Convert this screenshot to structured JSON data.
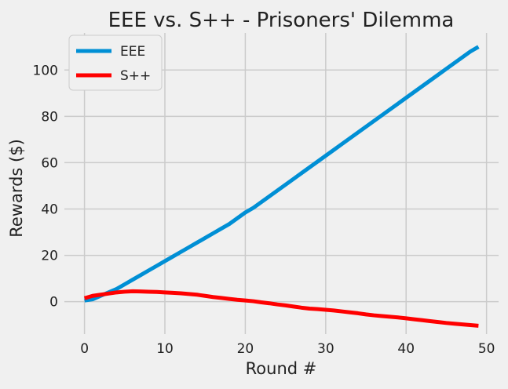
{
  "chart_data": {
    "type": "line",
    "title": "EEE vs. S++ - Prisoners' Dilemma",
    "xlabel": "Round #",
    "ylabel": "Rewards ($)",
    "xlim": [
      -2.5,
      51.5
    ],
    "ylim": [
      -14,
      116
    ],
    "xticks": [
      0,
      10,
      20,
      30,
      40,
      50
    ],
    "yticks": [
      0,
      20,
      40,
      60,
      80,
      100
    ],
    "grid": true,
    "legend_position": "top-left",
    "series": [
      {
        "name": "EEE",
        "color": "#008fd5",
        "x": [
          0,
          1,
          2,
          3,
          4,
          5,
          6,
          7,
          8,
          9,
          10,
          11,
          12,
          13,
          14,
          15,
          16,
          17,
          18,
          19,
          20,
          21,
          22,
          23,
          24,
          25,
          26,
          27,
          28,
          29,
          30,
          31,
          32,
          33,
          34,
          35,
          36,
          37,
          38,
          39,
          40,
          41,
          42,
          43,
          44,
          45,
          46,
          47,
          48,
          49
        ],
        "y": [
          0.5,
          1,
          2.5,
          4,
          5.5,
          7.5,
          9.5,
          11.5,
          13.5,
          15.5,
          17.5,
          19.5,
          21.5,
          23.5,
          25.5,
          27.5,
          29.5,
          31.5,
          33.5,
          36,
          38.5,
          40.5,
          43,
          45.5,
          48,
          50.5,
          53,
          55.5,
          58,
          60.5,
          63,
          65.5,
          68,
          70.5,
          73,
          75.5,
          78,
          80.5,
          83,
          85.5,
          88,
          90.5,
          93,
          95.5,
          98,
          100.5,
          103,
          105.5,
          108,
          110
        ]
      },
      {
        "name": "S++",
        "color": "#ff0000",
        "x": [
          0,
          1,
          2,
          3,
          4,
          5,
          6,
          7,
          8,
          9,
          10,
          11,
          12,
          13,
          14,
          15,
          16,
          17,
          18,
          19,
          20,
          21,
          22,
          23,
          24,
          25,
          26,
          27,
          28,
          29,
          30,
          31,
          32,
          33,
          34,
          35,
          36,
          37,
          38,
          39,
          40,
          41,
          42,
          43,
          44,
          45,
          46,
          47,
          48,
          49
        ],
        "y": [
          1.5,
          2.5,
          3,
          3.5,
          4,
          4.3,
          4.5,
          4.4,
          4.3,
          4.2,
          4,
          3.8,
          3.6,
          3.3,
          3,
          2.5,
          2,
          1.6,
          1.2,
          0.8,
          0.5,
          0.2,
          -0.3,
          -0.7,
          -1.2,
          -1.6,
          -2.1,
          -2.6,
          -3,
          -3.2,
          -3.5,
          -3.8,
          -4.2,
          -4.6,
          -5,
          -5.5,
          -5.9,
          -6.2,
          -6.5,
          -6.8,
          -7.2,
          -7.6,
          -8,
          -8.4,
          -8.8,
          -9.2,
          -9.5,
          -9.8,
          -10.1,
          -10.4
        ]
      }
    ]
  }
}
